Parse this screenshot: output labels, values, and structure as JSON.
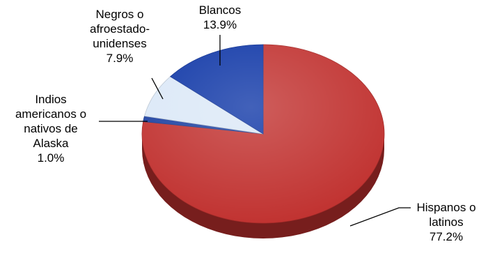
{
  "chart_data": {
    "type": "pie",
    "style": "3d",
    "title": "",
    "slices": [
      {
        "label_lines": [
          "Hispanos o",
          "latinos"
        ],
        "value": 77.2,
        "value_text": "77.2%",
        "color": "#c0302e"
      },
      {
        "label_lines": [
          "Indios",
          "americanos o",
          "nativos de",
          "Alaska"
        ],
        "value": 1.0,
        "value_text": "1.0%",
        "color": "#1a3fa0"
      },
      {
        "label_lines": [
          "Negros o",
          "afroestado-",
          "unidenses"
        ],
        "value": 7.9,
        "value_text": "7.9%",
        "color": "#dbe8f7"
      },
      {
        "label_lines": [
          "Blancos"
        ],
        "value": 13.9,
        "value_text": "13.9%",
        "color": "#0d35a6"
      }
    ]
  }
}
